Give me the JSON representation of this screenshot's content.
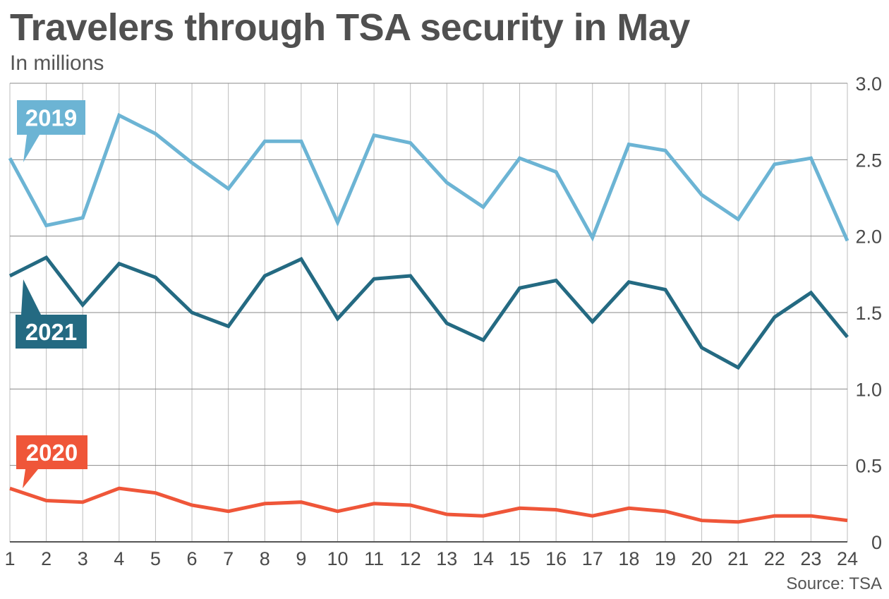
{
  "chart_data": {
    "type": "line",
    "title": "Travelers through TSA security in May",
    "subtitle": "In millions",
    "source": "Source: TSA",
    "xlabel": "",
    "ylabel": "",
    "categories": [
      "1",
      "2",
      "3",
      "4",
      "5",
      "6",
      "7",
      "8",
      "9",
      "10",
      "11",
      "12",
      "13",
      "14",
      "15",
      "16",
      "17",
      "18",
      "19",
      "20",
      "21",
      "22",
      "23",
      "24"
    ],
    "ylim": [
      0,
      3.0
    ],
    "yticks": [
      "3.0",
      "2.5",
      "2.0",
      "1.5",
      "1.0",
      "0.5",
      "0"
    ],
    "ytick_values": [
      3.0,
      2.5,
      2.0,
      1.5,
      1.0,
      0.5,
      0
    ],
    "grid": true,
    "series": [
      {
        "name": "2019",
        "label": "2019",
        "color": "#6cb4d4",
        "values": [
          2.51,
          2.07,
          2.12,
          2.79,
          2.67,
          2.48,
          2.31,
          2.62,
          2.62,
          2.09,
          2.66,
          2.61,
          2.35,
          2.19,
          2.51,
          2.42,
          1.99,
          2.6,
          2.56,
          2.27,
          2.11,
          2.47,
          2.51,
          1.97
        ]
      },
      {
        "name": "2021",
        "label": "2021",
        "color": "#246a82",
        "values": [
          1.74,
          1.86,
          1.55,
          1.82,
          1.73,
          1.5,
          1.41,
          1.74,
          1.85,
          1.46,
          1.72,
          1.74,
          1.43,
          1.32,
          1.66,
          1.71,
          1.44,
          1.7,
          1.65,
          1.27,
          1.14,
          1.47,
          1.63,
          1.34
        ]
      },
      {
        "name": "2020",
        "label": "2020",
        "color": "#ef5639",
        "values": [
          0.35,
          0.27,
          0.26,
          0.35,
          0.32,
          0.24,
          0.2,
          0.25,
          0.26,
          0.2,
          0.25,
          0.24,
          0.18,
          0.17,
          0.22,
          0.21,
          0.17,
          0.22,
          0.2,
          0.14,
          0.13,
          0.17,
          0.17,
          0.14
        ]
      }
    ]
  }
}
